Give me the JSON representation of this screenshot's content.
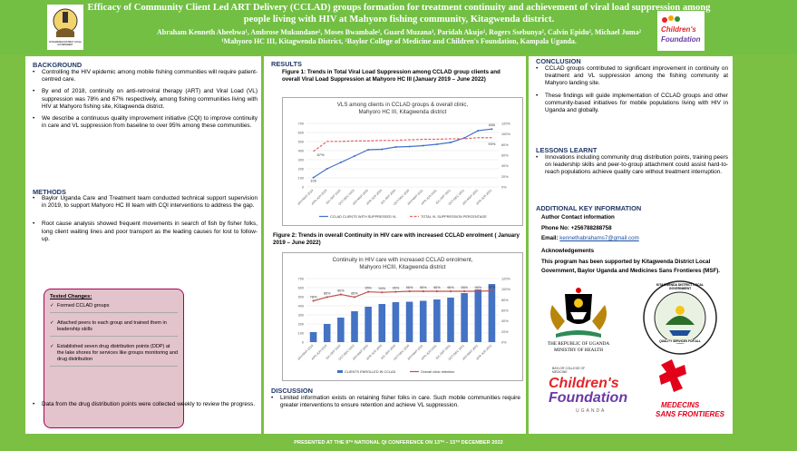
{
  "header": {
    "title": "Efficacy of Community Client Led ART Delivery (CCLAD) groups formation for treatment continuity and achievement of viral load suppression among people living with HIV at Mahyoro fishing community, Kitagwenda district.",
    "authors": "Abraham Kenneth Aheebwa¹, Ambrose Mukundane², Moses Bwambale², Guard Muzana³, Paridah Akujo², Rogers Ssebunya², Calvin Epidu², Michael Juma²",
    "affiliations": "¹Mahyoro HC III, Kitagwenda District, ²Baylor College of Medicine and Children's Foundation, Kampala Uganda.",
    "left_logo_caption": "KITAGWENDA DISTRICT LOCAL GOVERNMENT"
  },
  "background": {
    "heading": "BACKGROUND",
    "bullets": [
      "Controlling the HIV epidemic among mobile fishing communities will require patient-centred care.",
      "By end of 2018, continuity on anti-retroviral therapy (ART) and Viral Load (VL) suppression was 78% and 67% respectively, among fishing communities living with HIV at Mahyoro fishing site, Kitagwenda district.",
      "We describe a continuous quality improvement initiative (CQI) to improve continuity in care and VL suppression from baseline to over 95% among these communities."
    ]
  },
  "methods": {
    "heading": "METHODS",
    "bullets": [
      "Baylor Uganda Care and Treatment team conducted technical support supervision in 2019, to support Mahyoro HC III team with CQI interventions to address the gap.",
      "Root cause analysis showed frequent movements in search of fish by fisher folks, long client waiting lines and poor transport as the leading causes for lost to follow-up."
    ],
    "tested_heading": "Tested Changes:",
    "tested_items": [
      "Formed CCLAD groups",
      "Attached peers to each group and trained them in leadership skills",
      "Established seven drug distribution points (DDP) at the lake shores for services like groups monitoring and drug distribution"
    ],
    "after_bullet": "Data from the drug distribution points were collected weekly to review the progress."
  },
  "results": {
    "heading": "RESULTS",
    "fig1_caption": "Figure 1: Trends in Total Viral Load Suppression among CCLAD group clients and overall Viral Load Suppression at Mahyoro HC III (January 2019 – June 2022)",
    "fig2_caption": "Figure 2: Trends in overall Continuity in HIV care with increased CCLAD enrolment ( January 2019 – June 2022)"
  },
  "discussion": {
    "heading": "DISCUSSION",
    "bullets": [
      "Limited information exists on retaining fisher folks in care. Such mobile communities require greater interventions to ensure retention and achieve VL suppression."
    ]
  },
  "conclusion": {
    "heading": "CONCLUSION",
    "bullets": [
      "CCLAD groups contributed to significant improvement in continuity on treatment and VL suppression among the fishing community at Mahyoro landing site.",
      "These findings will guide implementation of CCLAD groups and other community-based initiatives for mobile populations living with HIV in Uganda and globally."
    ]
  },
  "lessons": {
    "heading": "LESSONS LEARNT",
    "bullets": [
      "Innovations including community drug distribution points, training peers on leadership skills and peer-to-group attachment could assist hard-to-reach populations achieve quality care without treatment interruption."
    ]
  },
  "additional": {
    "heading": "ADDITIONAL KEY INFORMATION",
    "contact_heading": "Author Contact information",
    "phone": "Phone No: +256788288758",
    "email_label": "Email: ",
    "email": "kennethabrahams7@gmail.com",
    "ack_heading": "Acknowledgements",
    "ack_text": "This program has been supported by Kitagwenda District Local Government, Baylor Uganda and Medicines Sans Frontieres (MSF)."
  },
  "logos": {
    "uganda_caption_1": "THE REPUBLIC OF UGANDA",
    "uganda_caption_2": "MINISTRY OF HEALTH",
    "district_ring": "KITAGWENDA DISTRICT LOCAL GOVERNMENT",
    "district_motto": "QUALITY SERVICES FOR ALL",
    "baylor_small": "BAYLOR COLLEGE OF MEDICINE",
    "childrens_1": "Children's",
    "childrens_2": "Foundation",
    "childrens_3": "UGANDA",
    "msf_1": "MEDECINS",
    "msf_2": "SANS FRONTIERES",
    "cf_top_1": "Children's",
    "cf_top_2": "Foundation"
  },
  "footer": {
    "text": "PRESENTED AT THE 9ᵀᴴ NATIONAL QI CONFERENCE ON 13ᵀᴴ – 15ᵀᴴ DECEMBER 2022"
  },
  "chart_data": [
    {
      "type": "line",
      "title": "VLS among clients in CCLAD groups & overall clinic, Mahyoro HC III, Kitagwenda district",
      "categories": [
        "JAN-MAR 2019",
        "APR-JUN 2019",
        "JUL-SEP 2019",
        "OCT-DEC 2019",
        "JAN-MAR 2020",
        "APR-JUN 2020",
        "JUL-SEP 2020",
        "OCT-DEC 2020",
        "JAN-MAR 2021",
        "APR-JUN 2021",
        "JUL-SEP 2021",
        "OCT-DEC 2021",
        "JAN-MAR 2022",
        "APR-JUN 2022"
      ],
      "series": [
        {
          "name": "CCLAD CLIENTS WITH SUPPRESSED VL",
          "axis": "left",
          "color": "#4472c4",
          "values": [
            103,
            200,
            270,
            340,
            410,
            415,
            440,
            445,
            455,
            470,
            490,
            540,
            620,
            638
          ]
        },
        {
          "name": "TOTAL VL SUPPRESSION PERCENTAGE",
          "axis": "right",
          "color": "#e06666",
          "values": [
            67,
            86,
            86,
            87,
            87,
            88,
            88,
            89,
            90,
            90,
            91,
            91,
            93,
            93
          ]
        }
      ],
      "data_labels": {
        "first_left": "103",
        "first_right": "67%",
        "last_left": "638",
        "last_right": "93%"
      },
      "ylim_left": [
        0,
        700
      ],
      "ylim_right": [
        0,
        120
      ],
      "yticks_left": [
        "0",
        "100",
        "200",
        "300",
        "400",
        "500",
        "600",
        "700"
      ],
      "yticks_right": [
        "0%",
        "20%",
        "40%",
        "60%",
        "80%",
        "100%",
        "120%"
      ]
    },
    {
      "type": "bar",
      "title": "Continuity in HIV care with increased CCLAD enrolment, Mahyoro HCIII, Kitagwenda district",
      "categories": [
        "JAN-MAR 2019",
        "APR-JUN 2019",
        "JUL-SEP 2019",
        "OCT-DEC 2019",
        "JAN-MAR 2020",
        "APR-JUN 2020",
        "JUL-SEP 2020",
        "OCT-DEC 2020",
        "JAN-MAR 2021",
        "APR-JUN 2021",
        "JUL-SEP 2021",
        "OCT-DEC 2021",
        "JAN-MAR 2022",
        "APR-JUN 2022"
      ],
      "series": [
        {
          "name": "CLIENTS ENROLLED IN CCLAD",
          "axis": "left",
          "color": "#4472c4",
          "values": [
            110,
            200,
            270,
            340,
            390,
            420,
            440,
            445,
            455,
            470,
            490,
            540,
            580,
            640
          ]
        },
        {
          "name": "Overall clinic retention",
          "axis": "right",
          "color": "#c0504d",
          "values": [
            78,
            85,
            90,
            85,
            95,
            94,
            95,
            96,
            96,
            96,
            96,
            96,
            96,
            97
          ]
        }
      ],
      "data_labels": [
        "78%",
        "85%",
        "90%",
        "85%",
        "95%",
        "94%",
        "95%",
        "96%",
        "96%",
        "96%",
        "96%",
        "96%",
        "96%",
        "97%"
      ],
      "ylim_left": [
        0,
        700
      ],
      "ylim_right": [
        0,
        120
      ],
      "yticks_left": [
        "0",
        "100",
        "200",
        "300",
        "400",
        "500",
        "600",
        "700"
      ],
      "yticks_right": [
        "0%",
        "20%",
        "40%",
        "60%",
        "80%",
        "100%",
        "120%"
      ]
    }
  ]
}
